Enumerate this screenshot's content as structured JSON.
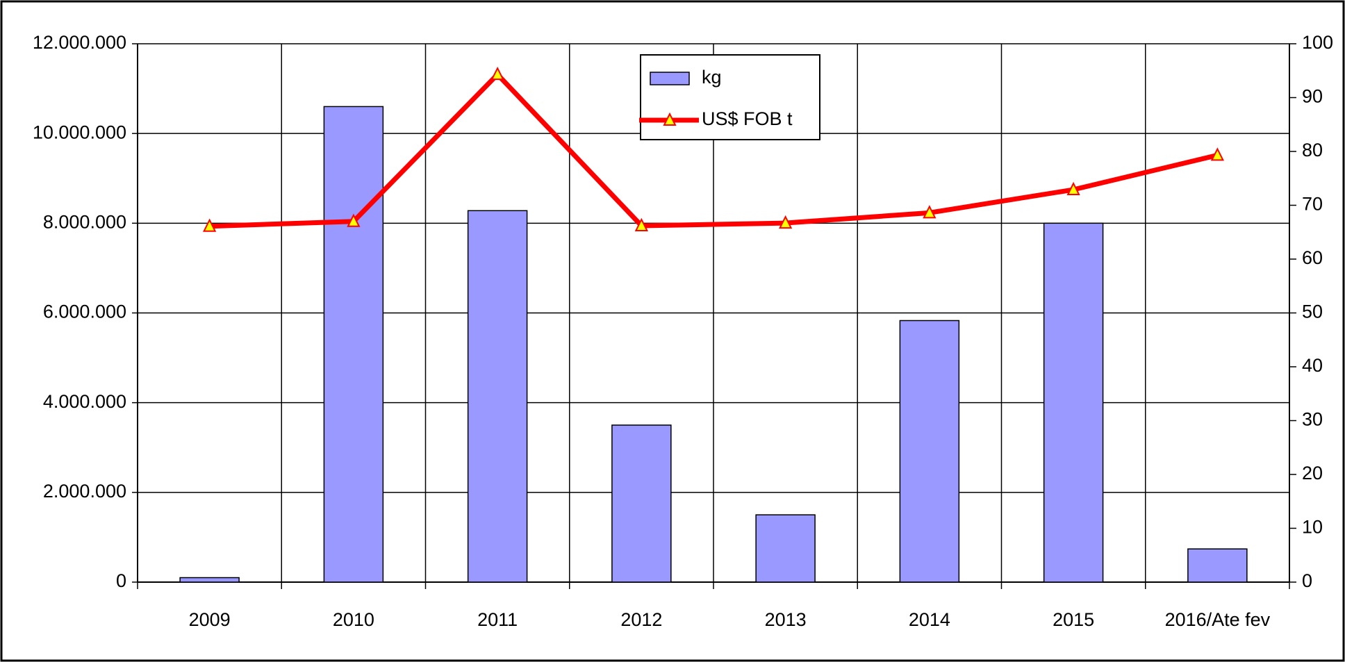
{
  "chart_data": {
    "type": "bar_line",
    "categories": [
      "2009",
      "2010",
      "2011",
      "2012",
      "2013",
      "2014",
      "2015",
      "2016/Ate fev"
    ],
    "series": [
      {
        "name": "kg",
        "type": "bar",
        "color": "#9999ff",
        "values": [
          100000,
          10600000,
          8280000,
          3500000,
          1500000,
          5830000,
          8000000,
          740000
        ]
      },
      {
        "name": "US$ FOB t",
        "type": "line",
        "axis": "y2",
        "color": "#ff0000",
        "marker_color": "#ffff00",
        "values": [
          66.1,
          67.0,
          94.3,
          66.2,
          66.7,
          68.6,
          72.9,
          79.3
        ]
      }
    ],
    "ylim": [
      0,
      12000000
    ],
    "yticks": [
      0,
      {
        "value": 2000000,
        "label": "2.000.000"
      },
      {
        "value": 4000000,
        "label": "4.000.000"
      },
      {
        "value": 6000000,
        "label": "6.000.000"
      },
      {
        "value": 8000000,
        "label": "8.000.000"
      },
      {
        "value": 10000000,
        "label": "10.000.000"
      },
      {
        "value": 12000000,
        "label": "12.000.000"
      }
    ],
    "y2lim": [
      0,
      100
    ],
    "y2ticks": [
      0,
      10,
      20,
      30,
      40,
      50,
      60,
      70,
      80,
      90,
      100
    ],
    "grid": true,
    "legend": "top-center"
  }
}
